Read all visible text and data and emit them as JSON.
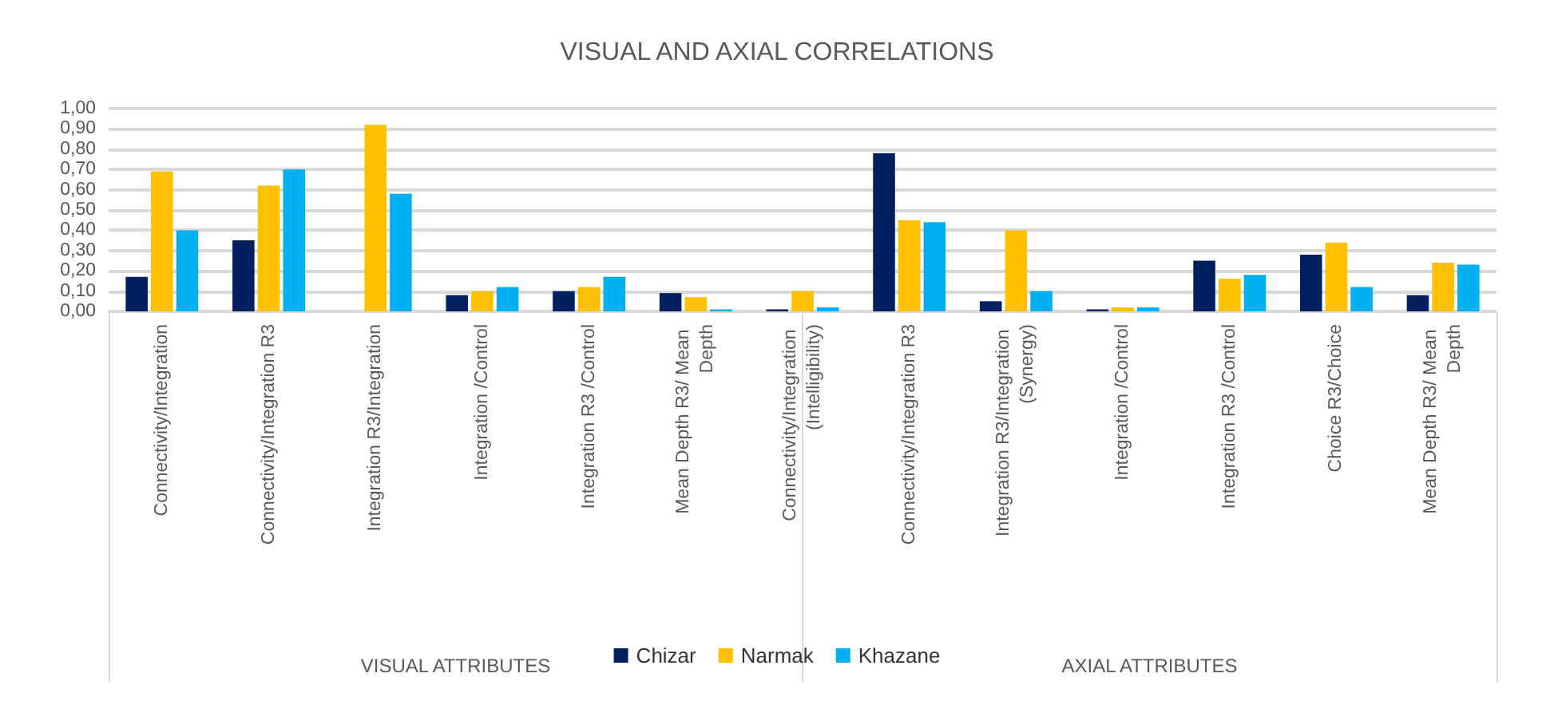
{
  "chart_data": {
    "type": "bar",
    "title": "VISUAL AND AXIAL CORRELATIONS",
    "categories": [
      "Connectivity/Integration",
      "Connectivity/Integration R3",
      "Integration R3/Integration",
      "Integration /Control",
      "Integration R3 /Control",
      "Mean Depth R3/ Mean Depth",
      "Connectivity/Integration (Intelligibility)",
      "Connectivity/Integration R3",
      "Integration R3/Integration (Synergy)",
      "Integration /Control",
      "Integration R3 /Control",
      "Choice R3/Choice",
      "Mean Depth R3/ Mean Depth"
    ],
    "series": [
      {
        "name": "Chizar",
        "color": "#002060",
        "values": [
          0.17,
          0.35,
          0,
          0.08,
          0.1,
          0.09,
          0.01,
          0.78,
          0.05,
          0.01,
          0.25,
          0.28,
          0.08
        ]
      },
      {
        "name": "Narmak",
        "color": "#ffc000",
        "values": [
          0.69,
          0.62,
          0.92,
          0.1,
          0.12,
          0.07,
          0.1,
          0.45,
          0.4,
          0.02,
          0.16,
          0.34,
          0.24
        ]
      },
      {
        "name": "Khazane",
        "color": "#00b0f0",
        "values": [
          0.4,
          0.7,
          0.58,
          0.12,
          0.17,
          0.01,
          0.02,
          0.44,
          0.1,
          0.02,
          0.18,
          0.12,
          0.23
        ]
      }
    ],
    "annotations": [
      "VISUAL ATTRIBUTES",
      "AXIAL ATTRIBUTES"
    ],
    "ylim": [
      0,
      1
    ],
    "yticks": [
      {
        "value": 0,
        "label": "0,00"
      },
      {
        "value": 0.1,
        "label": "0,10"
      },
      {
        "value": 0.2,
        "label": "0,20"
      },
      {
        "value": 0.3,
        "label": "0,30"
      },
      {
        "value": 0.4,
        "label": "0,40"
      },
      {
        "value": 0.5,
        "label": "0,50"
      },
      {
        "value": 0.6,
        "label": "0,60"
      },
      {
        "value": 0.7,
        "label": "0,70"
      },
      {
        "value": 0.8,
        "label": "0,80"
      },
      {
        "value": 0.9,
        "label": "0,90"
      },
      {
        "value": 1,
        "label": "1,00"
      }
    ],
    "grid": "y",
    "legend": "bottom"
  }
}
